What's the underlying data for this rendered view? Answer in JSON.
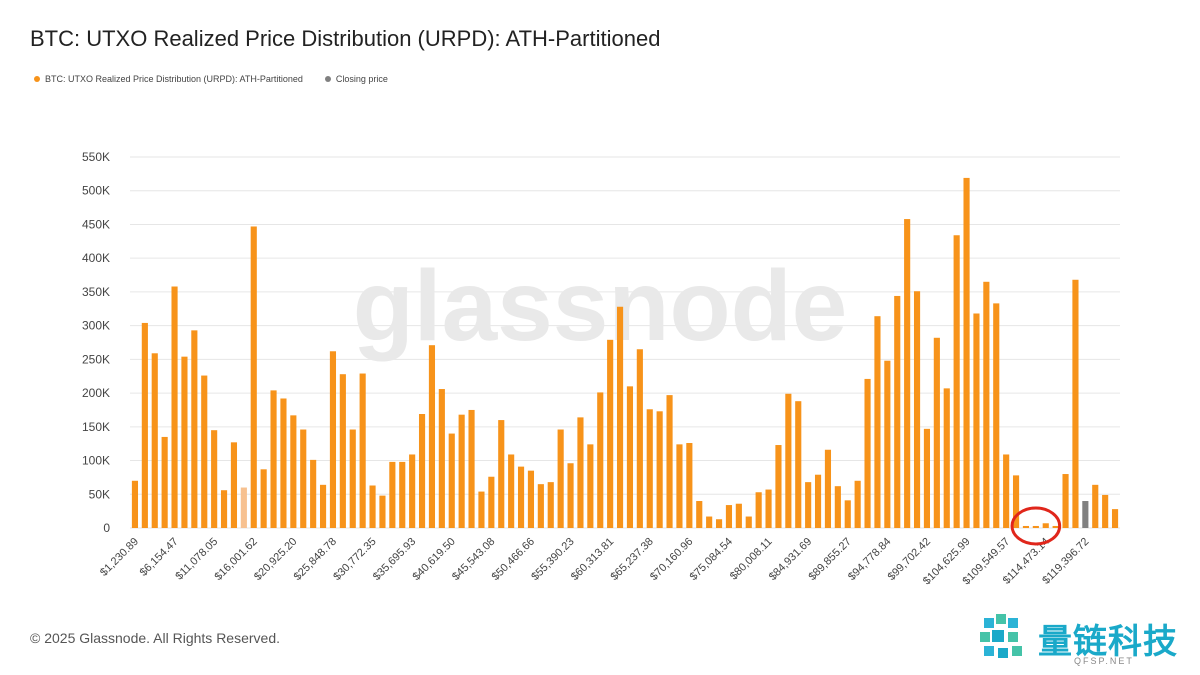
{
  "chart_data": {
    "type": "bar",
    "title": "BTC: UTXO Realized Price Distribution (URPD): ATH-Partitioned",
    "watermark": "glassnode",
    "legend": [
      {
        "label": "BTC: UTXO Realized Price Distribution (URPD): ATH-Partitioned",
        "color": "#f7931a"
      },
      {
        "label": "Closing price",
        "color": "#808080"
      }
    ],
    "y_ticks": [
      "0",
      "50K",
      "100K",
      "150K",
      "200K",
      "250K",
      "300K",
      "350K",
      "400K",
      "450K",
      "500K",
      "550K"
    ],
    "ylim": [
      0,
      550000
    ],
    "x_ticks": [
      {
        "index": 0,
        "label": "$1,230.89"
      },
      {
        "index": 4,
        "label": "$6,154.47"
      },
      {
        "index": 8,
        "label": "$11,078.05"
      },
      {
        "index": 12,
        "label": "$16,001.62"
      },
      {
        "index": 16,
        "label": "$20,925.20"
      },
      {
        "index": 20,
        "label": "$25,848.78"
      },
      {
        "index": 24,
        "label": "$30,772.35"
      },
      {
        "index": 28,
        "label": "$35,695.93"
      },
      {
        "index": 32,
        "label": "$40,619.50"
      },
      {
        "index": 36,
        "label": "$45,543.08"
      },
      {
        "index": 40,
        "label": "$50,466.66"
      },
      {
        "index": 44,
        "label": "$55,390.23"
      },
      {
        "index": 48,
        "label": "$60,313.81"
      },
      {
        "index": 52,
        "label": "$65,237.38"
      },
      {
        "index": 56,
        "label": "$70,160.96"
      },
      {
        "index": 60,
        "label": "$75,084.54"
      },
      {
        "index": 64,
        "label": "$80,008.11"
      },
      {
        "index": 68,
        "label": "$84,931.69"
      },
      {
        "index": 72,
        "label": "$89,855.27"
      },
      {
        "index": 76,
        "label": "$94,778.84"
      },
      {
        "index": 80,
        "label": "$99,702.42"
      },
      {
        "index": 84,
        "label": "$104,625.99"
      },
      {
        "index": 88,
        "label": "$109,549.57"
      },
      {
        "index": 92,
        "label": "$114,473.14"
      },
      {
        "index": 96,
        "label": "$119,396.72"
      }
    ],
    "values": [
      70000,
      304000,
      259000,
      135000,
      358000,
      254000,
      293000,
      226000,
      145000,
      56000,
      127000,
      60000,
      447000,
      87000,
      204000,
      192000,
      167000,
      146000,
      101000,
      64000,
      262000,
      228000,
      146000,
      229000,
      63000,
      48000,
      98000,
      98000,
      109000,
      169000,
      271000,
      206000,
      140000,
      168000,
      175000,
      54000,
      76000,
      160000,
      109000,
      91000,
      85000,
      65000,
      68000,
      146000,
      96000,
      164000,
      124000,
      201000,
      279000,
      328000,
      210000,
      265000,
      176000,
      173000,
      197000,
      124000,
      126000,
      40000,
      17000,
      13000,
      34000,
      36000,
      17000,
      53000,
      57000,
      123000,
      199000,
      188000,
      68000,
      79000,
      116000,
      62000,
      41000,
      70000,
      221000,
      314000,
      248000,
      344000,
      458000,
      351000,
      147000,
      282000,
      207000,
      434000,
      519000,
      318000,
      365000,
      333000,
      109000,
      78000,
      3000,
      3000,
      7000,
      3000,
      80000,
      368000,
      40000,
      64000,
      49000,
      28000
    ],
    "bar_colors": {
      "default": "#f7931a",
      "muted": "#f7c190",
      "closing": "#808080"
    },
    "muted_indices": [
      11
    ],
    "closing_index": 96,
    "highlight_circle_indices": [
      89,
      93
    ]
  },
  "footer": {
    "copyright": "© 2025 Glassnode. All Rights Reserved."
  },
  "logo": {
    "name": "量链科技",
    "url": "QFSP.NET"
  }
}
